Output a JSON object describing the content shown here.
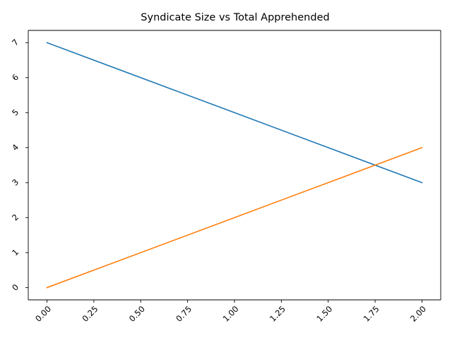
{
  "chart_data": {
    "type": "line",
    "title": "Syndicate Size vs Total Apprehended",
    "xlabel": "",
    "ylabel": "",
    "xlim": [
      -0.1,
      2.1
    ],
    "ylim": [
      -0.35,
      7.35
    ],
    "x_ticks": [
      0.0,
      0.25,
      0.5,
      0.75,
      1.0,
      1.25,
      1.5,
      1.75,
      2.0
    ],
    "x_tick_labels": [
      "0.00",
      "0.25",
      "0.50",
      "0.75",
      "1.00",
      "1.25",
      "1.50",
      "1.75",
      "2.00"
    ],
    "y_ticks": [
      0,
      1,
      2,
      3,
      4,
      5,
      6,
      7
    ],
    "y_tick_labels": [
      "0",
      "1",
      "2",
      "3",
      "4",
      "5",
      "6",
      "7"
    ],
    "tick_label_rotation": 45,
    "grid": false,
    "legend": "none",
    "series": [
      {
        "color": "#1f77b4",
        "x": [
          0,
          1,
          2
        ],
        "y": [
          7,
          5,
          3
        ]
      },
      {
        "color": "#ff7f0e",
        "x": [
          0,
          1,
          2
        ],
        "y": [
          0,
          2,
          4
        ]
      }
    ]
  }
}
